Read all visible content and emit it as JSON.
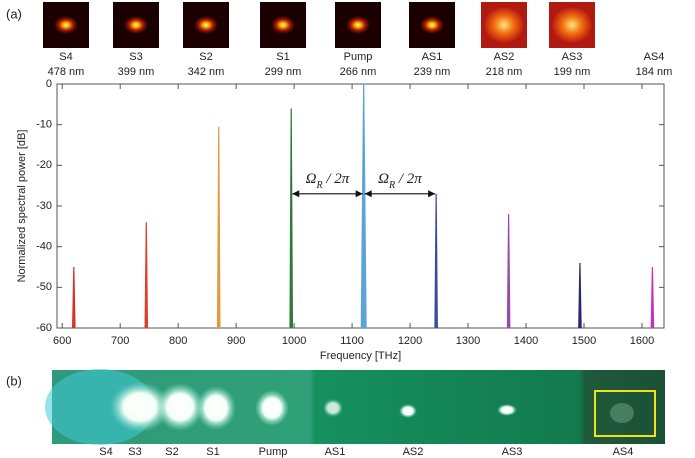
{
  "panel_labels": [
    "(a)",
    "(b)"
  ],
  "spectra_images": [
    {
      "name": "S4",
      "wavelength": "478 nm"
    },
    {
      "name": "S3",
      "wavelength": "399 nm"
    },
    {
      "name": "S2",
      "wavelength": "342 nm"
    },
    {
      "name": "S1",
      "wavelength": "299 nm"
    },
    {
      "name": "Pump",
      "wavelength": "266 nm"
    },
    {
      "name": "AS1",
      "wavelength": "239 nm"
    },
    {
      "name": "AS2",
      "wavelength": "218 nm"
    },
    {
      "name": "AS3",
      "wavelength": "199 nm"
    },
    {
      "name": "AS4",
      "wavelength": "184 nm"
    }
  ],
  "chart_data": {
    "type": "stem",
    "x_label": "Frequency [THz]",
    "y_label": "Normalized spectral power [dB]",
    "x": [
      620,
      745,
      870,
      995,
      1120,
      1245,
      1370,
      1493,
      1618
    ],
    "values": [
      -45,
      -34,
      -10.5,
      -6,
      0,
      -27,
      -32,
      -44,
      -45
    ],
    "colors": [
      "#d9302a",
      "#d9402e",
      "#e39a3c",
      "#2a7a3a",
      "#5aa5d5",
      "#3a4aa0",
      "#9a48b0",
      "#262a6e",
      "#c232c0"
    ],
    "xlim": [
      591,
      1638
    ],
    "ylim": [
      -60,
      0
    ],
    "xticks": [
      600,
      700,
      800,
      900,
      1000,
      1100,
      1200,
      1300,
      1400,
      1500,
      1600
    ],
    "yticks": [
      0,
      -10,
      -20,
      -30,
      -40,
      -50,
      -60
    ],
    "annotation": {
      "symbol": "Ω",
      "subscript": "R",
      "rest": " / 2π"
    }
  },
  "photo_labels": [
    "S4",
    "S3",
    "S2",
    "S1",
    "Pump",
    "AS1",
    "AS2",
    "AS3",
    "AS4"
  ]
}
